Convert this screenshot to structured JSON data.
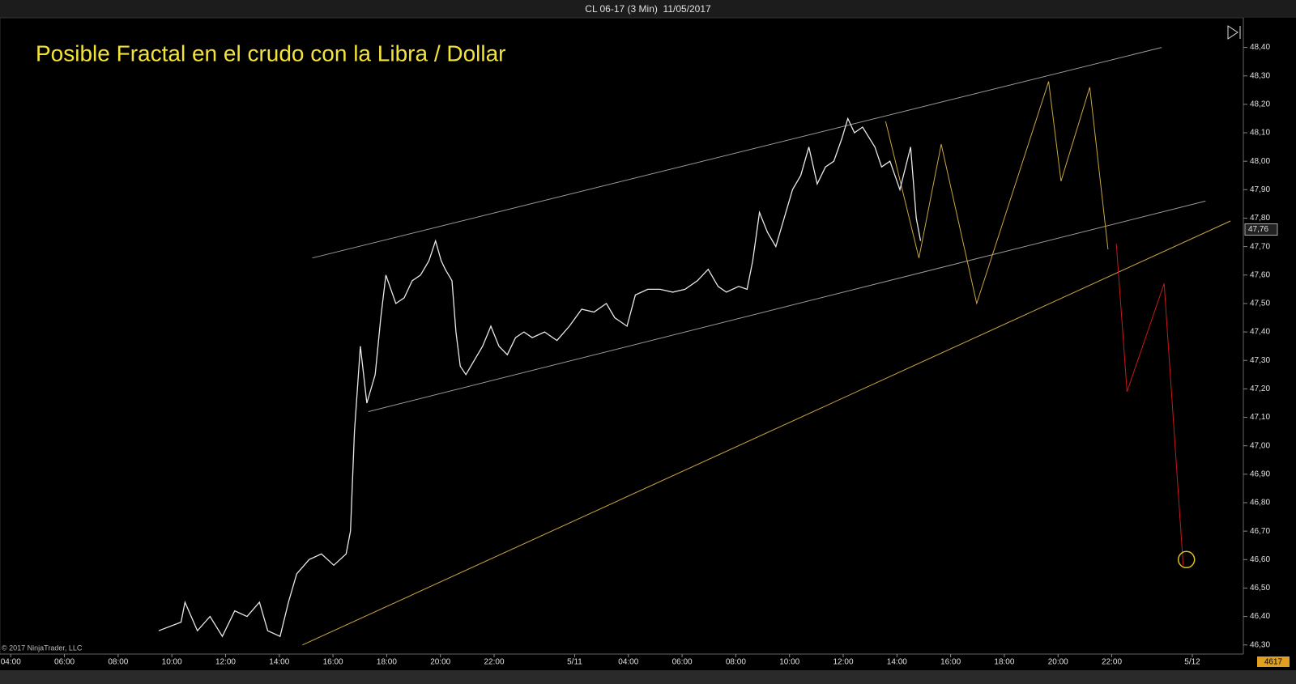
{
  "chart_data": {
    "type": "line",
    "title": "CL 06-17 (3 Min)  11/05/2017",
    "annotation": "Posible Fractal en el crudo con la Libra / Dollar",
    "copyright": "© 2017 NinjaTrader, LLC",
    "price": {
      "color": "#e8e8e8",
      "x": [
        9.51,
        10.34,
        10.49,
        10.95,
        11.42,
        11.88,
        12.34,
        12.8,
        13.26,
        13.57,
        14.03,
        14.34,
        14.65,
        15.11,
        15.57,
        16.03,
        16.49,
        16.65,
        16.8,
        17.02,
        17.26,
        17.57,
        17.78,
        17.97,
        18.34,
        18.65,
        18.95,
        19.26,
        19.57,
        19.82,
        20.03,
        20.18,
        20.43,
        20.58,
        20.74,
        20.95,
        21.26,
        21.57,
        21.88,
        22.18,
        22.49,
        22.8,
        23.11,
        23.42,
        23.88,
        24.34,
        24.8,
        25.26,
        25.72,
        26.18,
        26.49,
        26.95,
        27.26,
        27.72,
        28.18,
        28.65,
        29.11,
        29.57,
        29.97,
        30.34,
        30.65,
        31.11,
        31.42,
        31.63,
        31.88,
        32.18,
        32.49,
        32.8,
        33.11,
        33.42,
        33.72,
        34.03,
        34.34,
        34.65,
        34.95,
        35.17,
        35.42,
        35.72,
        36.18,
        36.43,
        36.74,
        37.11,
        37.51,
        37.72,
        37.88
      ],
      "values": [
        46.35,
        46.38,
        46.45,
        46.35,
        46.4,
        46.33,
        46.42,
        46.4,
        46.45,
        46.35,
        46.33,
        46.45,
        46.55,
        46.6,
        46.62,
        46.58,
        46.62,
        46.7,
        47.05,
        47.35,
        47.15,
        47.25,
        47.45,
        47.6,
        47.5,
        47.52,
        47.58,
        47.6,
        47.65,
        47.72,
        47.65,
        47.62,
        47.58,
        47.4,
        47.28,
        47.25,
        47.3,
        47.35,
        47.42,
        47.35,
        47.32,
        47.38,
        47.4,
        47.38,
        47.4,
        47.37,
        47.42,
        47.48,
        47.47,
        47.5,
        47.45,
        47.42,
        47.53,
        47.55,
        47.55,
        47.54,
        47.55,
        47.58,
        47.62,
        47.56,
        47.54,
        47.56,
        47.55,
        47.65,
        47.82,
        47.75,
        47.7,
        47.8,
        47.9,
        47.95,
        48.05,
        47.92,
        47.98,
        48.0,
        48.08,
        48.15,
        48.1,
        48.12,
        48.05,
        47.98,
        48.0,
        47.9,
        48.05,
        47.8,
        47.72
      ]
    },
    "drawings": [
      {
        "color": "#9a9a9a",
        "x": [
          15.23,
          46.86
        ],
        "values": [
          47.66,
          48.4
        ]
      },
      {
        "color": "#9a9a9a",
        "x": [
          17.32,
          48.49
        ],
        "values": [
          47.12,
          47.86
        ]
      },
      {
        "color": "#c8a640",
        "x": [
          14.86,
          49.42
        ],
        "values": [
          46.3,
          47.79
        ]
      },
      {
        "color": "#c8a640",
        "x": [
          36.58,
          37.82,
          38.65,
          39.97,
          42.65,
          43.11,
          44.18,
          44.86
        ],
        "values": [
          48.14,
          47.66,
          48.06,
          47.5,
          48.28,
          47.93,
          48.26,
          47.69
        ]
      },
      {
        "color": "#c81818",
        "x": [
          45.17,
          45.57,
          46.95,
          47.66
        ],
        "values": [
          47.71,
          47.19,
          47.57,
          46.58
        ]
      }
    ],
    "target_circle": {
      "color": "#e0c020",
      "x": 47.78,
      "value": 46.6
    },
    "last_price": {
      "value": 47.76,
      "label": "47,76"
    },
    "bar_counter": 4617,
    "xlim": [
      3.6,
      49.9
    ],
    "ylim": [
      46.268,
      48.504
    ],
    "xticks": [
      {
        "value": 4,
        "label": "04:00"
      },
      {
        "value": 6,
        "label": "06:00"
      },
      {
        "value": 8,
        "label": "08:00"
      },
      {
        "value": 10,
        "label": "10:00"
      },
      {
        "value": 12,
        "label": "12:00"
      },
      {
        "value": 14,
        "label": "14:00"
      },
      {
        "value": 16,
        "label": "16:00"
      },
      {
        "value": 18,
        "label": "18:00"
      },
      {
        "value": 20,
        "label": "20:00"
      },
      {
        "value": 22,
        "label": "22:00"
      },
      {
        "value": 25,
        "label": "5/11"
      },
      {
        "value": 27,
        "label": "04:00"
      },
      {
        "value": 29,
        "label": "06:00"
      },
      {
        "value": 31,
        "label": "08:00"
      },
      {
        "value": 33,
        "label": "10:00"
      },
      {
        "value": 35,
        "label": "12:00"
      },
      {
        "value": 37,
        "label": "14:00"
      },
      {
        "value": 39,
        "label": "16:00"
      },
      {
        "value": 41,
        "label": "18:00"
      },
      {
        "value": 43,
        "label": "20:00"
      },
      {
        "value": 45,
        "label": "22:00"
      },
      {
        "value": 48,
        "label": "5/12"
      }
    ],
    "yticks": [
      {
        "value": 48.4,
        "label": "48,40"
      },
      {
        "value": 48.3,
        "label": "48,30"
      },
      {
        "value": 48.2,
        "label": "48,20"
      },
      {
        "value": 48.1,
        "label": "48,10"
      },
      {
        "value": 48.0,
        "label": "48,00"
      },
      {
        "value": 47.9,
        "label": "47,90"
      },
      {
        "value": 47.8,
        "label": "47,80"
      },
      {
        "value": 47.7,
        "label": "47,70"
      },
      {
        "value": 47.6,
        "label": "47,60"
      },
      {
        "value": 47.5,
        "label": "47,50"
      },
      {
        "value": 47.4,
        "label": "47,40"
      },
      {
        "value": 47.3,
        "label": "47,30"
      },
      {
        "value": 47.2,
        "label": "47,20"
      },
      {
        "value": 47.1,
        "label": "47,10"
      },
      {
        "value": 47.0,
        "label": "47,00"
      },
      {
        "value": 46.9,
        "label": "46,90"
      },
      {
        "value": 46.8,
        "label": "46,80"
      },
      {
        "value": 46.7,
        "label": "46,70"
      },
      {
        "value": 46.6,
        "label": "46,60"
      },
      {
        "value": 46.5,
        "label": "46,50"
      },
      {
        "value": 46.4,
        "label": "46,40"
      },
      {
        "value": 46.3,
        "label": "46,30"
      }
    ],
    "grid": false
  }
}
